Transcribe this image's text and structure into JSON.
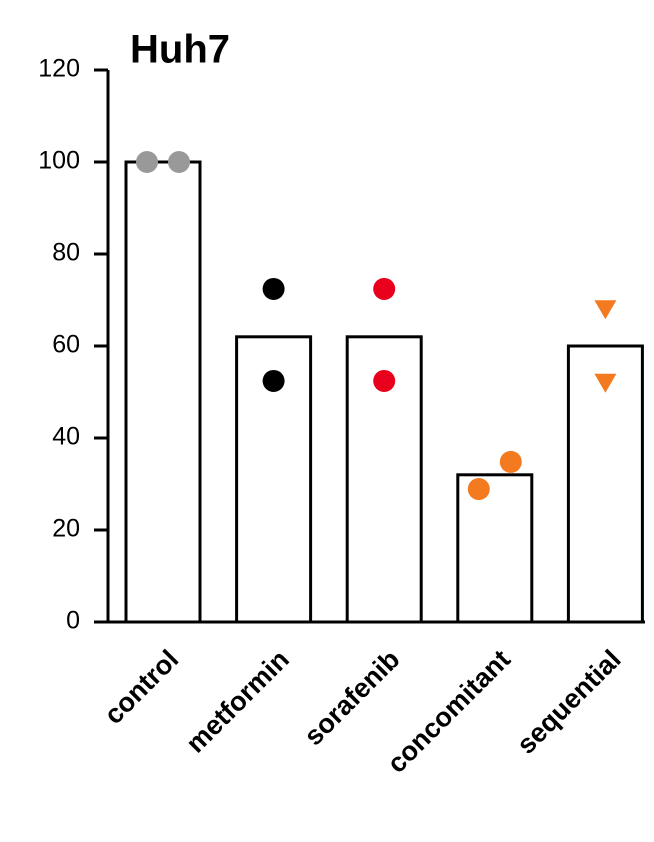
{
  "chart_data": {
    "type": "bar",
    "title": "Huh7",
    "categories": [
      "control",
      "metformin",
      "sorafenib",
      "concomitant",
      "sequential"
    ],
    "values": [
      100,
      62,
      62,
      32,
      60
    ],
    "color": "#ffffff",
    "points": [
      [
        100,
        100
      ],
      [
        72.4,
        52.4
      ],
      [
        72.4,
        52.4
      ],
      [
        28.9,
        34.8
      ],
      [
        68,
        52
      ]
    ],
    "point_colors": [
      "#999999",
      "#000000",
      "#e8001c",
      "#f47a1f",
      "#f47a1f"
    ],
    "point_markers": [
      "circle",
      "circle",
      "circle",
      "circle",
      "triangle-down"
    ],
    "ylim": [
      0,
      120
    ],
    "yticks": [
      0,
      20,
      40,
      60,
      80,
      100,
      120
    ],
    "grid": false
  }
}
